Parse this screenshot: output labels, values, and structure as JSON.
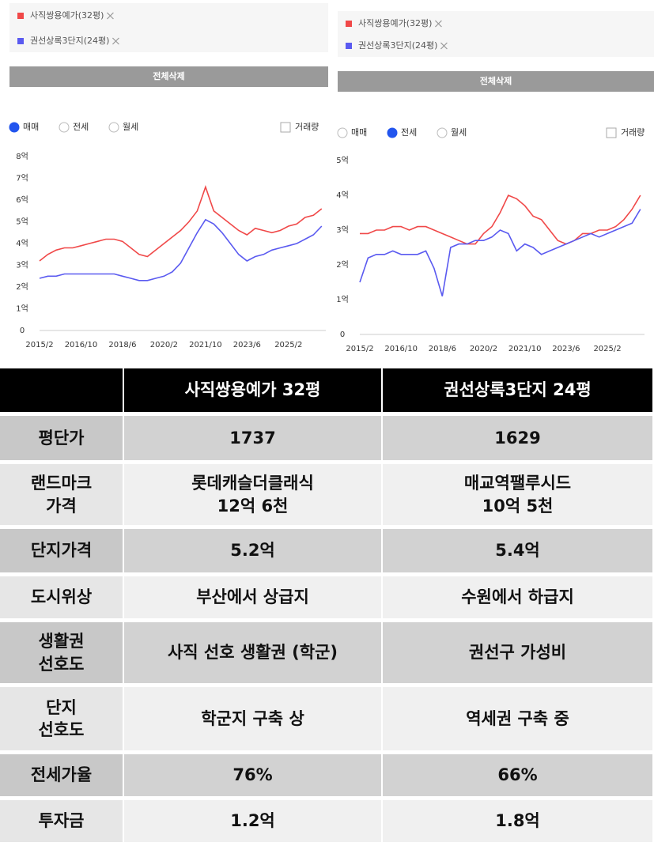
{
  "chart_data": [
    {
      "type": "line",
      "button": "전체삭제",
      "radios": [
        "매매",
        "전세",
        "월세"
      ],
      "selected_radio": 0,
      "checkbox": "거래량",
      "x": [
        "2015/2",
        "2015/6",
        "2015/10",
        "2016/2",
        "2016/6",
        "2016/10",
        "2017/2",
        "2017/6",
        "2017/10",
        "2018/2",
        "2018/6",
        "2018/10",
        "2019/2",
        "2019/6",
        "2019/10",
        "2020/2",
        "2020/6",
        "2020/10",
        "2021/2",
        "2021/6",
        "2021/10",
        "2022/2",
        "2022/6",
        "2022/10",
        "2023/2",
        "2023/6",
        "2023/10",
        "2024/2",
        "2024/6",
        "2024/10",
        "2025/2",
        "2025/6",
        "2025/10",
        "2026/2",
        "2026/6"
      ],
      "series": [
        {
          "name": "사직쌍용예가(32평)",
          "color": "#f04848",
          "values": [
            3.2,
            3.5,
            3.7,
            3.8,
            3.8,
            3.9,
            4.0,
            4.1,
            4.2,
            4.2,
            4.1,
            3.8,
            3.5,
            3.4,
            3.7,
            4.0,
            4.3,
            4.6,
            5.0,
            5.5,
            6.6,
            5.5,
            5.2,
            4.9,
            4.6,
            4.4,
            4.7,
            4.6,
            4.5,
            4.6,
            4.8,
            4.9,
            5.2,
            5.3,
            5.6
          ]
        },
        {
          "name": "권선상록3단지(24평)",
          "color": "#5a5af0",
          "values": [
            2.4,
            2.5,
            2.5,
            2.6,
            2.6,
            2.6,
            2.6,
            2.6,
            2.6,
            2.6,
            2.5,
            2.4,
            2.3,
            2.3,
            2.4,
            2.5,
            2.7,
            3.1,
            3.8,
            4.5,
            5.1,
            4.9,
            4.5,
            4.0,
            3.5,
            3.2,
            3.4,
            3.5,
            3.7,
            3.8,
            3.9,
            4.0,
            4.2,
            4.4,
            4.8
          ]
        }
      ],
      "xlim": [
        "2015/2",
        "2026/8"
      ],
      "xticks": [
        "2015/2",
        "2016/10",
        "2018/6",
        "2020/2",
        "2021/10",
        "2023/6",
        "2025/2"
      ],
      "ylim": [
        0,
        8
      ],
      "yticks": [
        0,
        {
          "value": 1,
          "label": "1억"
        },
        {
          "value": 2,
          "label": "2억"
        },
        {
          "value": 3,
          "label": "3억"
        },
        {
          "value": 4,
          "label": "4억"
        },
        {
          "value": 5,
          "label": "5억"
        },
        {
          "value": 6,
          "label": "6억"
        },
        {
          "value": 7,
          "label": "7억"
        },
        {
          "value": 8,
          "label": "8억"
        }
      ]
    },
    {
      "type": "line",
      "button": "전체삭제",
      "radios": [
        "매매",
        "전세",
        "월세"
      ],
      "selected_radio": 1,
      "checkbox": "거래량",
      "x": [
        "2015/2",
        "2015/6",
        "2015/10",
        "2016/2",
        "2016/6",
        "2016/10",
        "2017/2",
        "2017/6",
        "2017/10",
        "2018/2",
        "2018/6",
        "2018/10",
        "2019/2",
        "2019/6",
        "2019/10",
        "2020/2",
        "2020/6",
        "2020/10",
        "2021/2",
        "2021/6",
        "2021/10",
        "2022/2",
        "2022/6",
        "2022/10",
        "2023/2",
        "2023/6",
        "2023/10",
        "2024/2",
        "2024/6",
        "2024/10",
        "2025/2",
        "2025/6",
        "2025/10",
        "2026/2",
        "2026/6"
      ],
      "series": [
        {
          "name": "사직쌍용예가(32평)",
          "color": "#f04848",
          "values": [
            2.9,
            2.9,
            3.0,
            3.0,
            3.1,
            3.1,
            3.0,
            3.1,
            3.1,
            3.0,
            2.9,
            2.8,
            2.7,
            2.6,
            2.6,
            2.9,
            3.1,
            3.5,
            4.0,
            3.9,
            3.7,
            3.4,
            3.3,
            3.0,
            2.7,
            2.6,
            2.7,
            2.9,
            2.9,
            3.0,
            3.0,
            3.1,
            3.3,
            3.6,
            4.0
          ]
        },
        {
          "name": "권선상록3단지(24평)",
          "color": "#5a5af0",
          "values": [
            1.5,
            2.2,
            2.3,
            2.3,
            2.4,
            2.3,
            2.3,
            2.3,
            2.4,
            1.9,
            1.1,
            2.5,
            2.6,
            2.6,
            2.7,
            2.7,
            2.8,
            3.0,
            2.9,
            2.4,
            2.6,
            2.5,
            2.3,
            2.4,
            2.5,
            2.6,
            2.7,
            2.8,
            2.9,
            2.8,
            2.9,
            3.0,
            3.1,
            3.2,
            3.6
          ]
        }
      ],
      "xlim": [
        "2015/2",
        "2026/8"
      ],
      "xticks": [
        "2015/2",
        "2016/10",
        "2018/6",
        "2020/2",
        "2021/10",
        "2023/6",
        "2025/2"
      ],
      "ylim": [
        0,
        5
      ],
      "yticks": [
        0,
        {
          "value": 1,
          "label": "1억"
        },
        {
          "value": 2,
          "label": "2억"
        },
        {
          "value": 3,
          "label": "3억"
        },
        {
          "value": 4,
          "label": "4억"
        },
        {
          "value": 5,
          "label": "5억"
        }
      ]
    }
  ],
  "table": {
    "columns": [
      "사직쌍용예가 32평",
      "권선상록3단지 24평"
    ],
    "rows": [
      [
        "평단가",
        "1737",
        "1629"
      ],
      [
        "랜드마크\n가격",
        "롯데캐슬더클래식\n12억 6천",
        "매교역팰루시드\n10억 5천"
      ],
      [
        "단지가격",
        "5.2억",
        "5.4억"
      ],
      [
        "도시위상",
        "부산에서 상급지",
        "수원에서 하급지"
      ],
      [
        "생활권\n선호도",
        "사직 선호 생활권 (학군)",
        "권선구 가성비"
      ],
      [
        "단지\n선호도",
        "학군지 구축 상",
        "역세권 구축 중"
      ],
      [
        "전세가율",
        "76%",
        "66%"
      ],
      [
        "투자금",
        "1.2억",
        "1.8억"
      ]
    ]
  }
}
